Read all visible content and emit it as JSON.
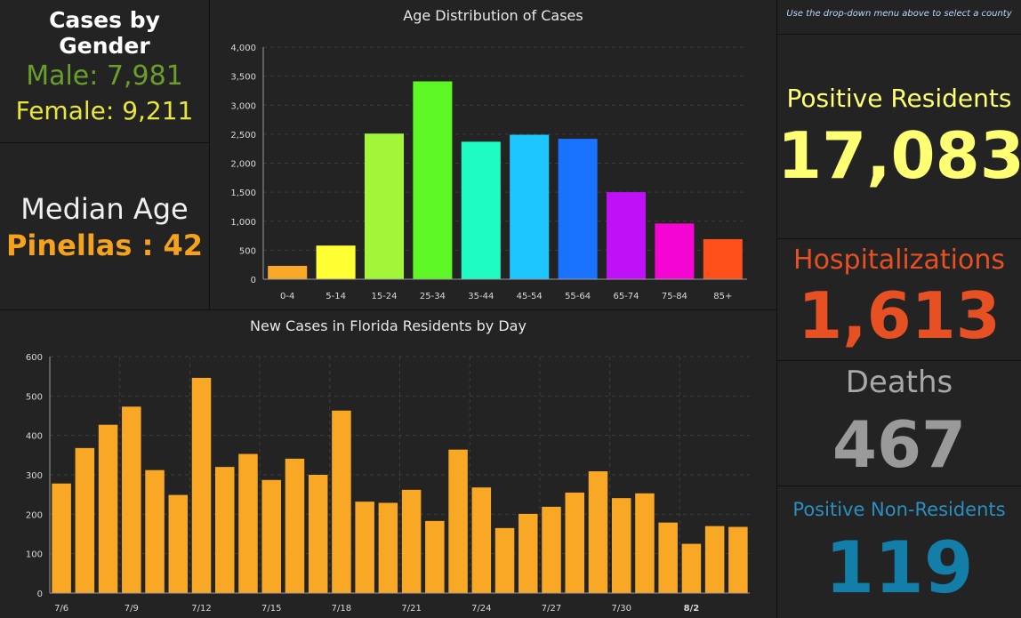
{
  "gender": {
    "title": "Cases by Gender",
    "male": "Male: 7,981",
    "female": "Female: 9,211"
  },
  "median": {
    "title": "Median Age",
    "value": "Pinellas : 42"
  },
  "note": "Use the drop-down menu above to select a county",
  "stats": {
    "positive_title": "Positive Residents",
    "positive_value": "17,083",
    "hosp_title": "Hospitalizations",
    "hosp_value": "1,613",
    "deaths_title": "Deaths",
    "deaths_value": "467",
    "nonres_title": "Positive Non-Residents",
    "nonres_value": "119"
  },
  "colors": {
    "background": "#111111",
    "panel": "#232323",
    "male": "#6a9e2a",
    "female": "#e8e63a",
    "median": "#f5a21c",
    "positive": "#ffff73",
    "hospitalizations": "#e65022",
    "deaths": "#9a9a9a",
    "nonresidents": "#137fa8",
    "daily_bar": "#f9a825"
  },
  "chart_data": [
    {
      "type": "bar",
      "title": "Age Distribution of Cases",
      "categories": [
        "0-4",
        "5-14",
        "15-24",
        "25-34",
        "35-44",
        "45-54",
        "55-64",
        "65-74",
        "75-84",
        "85+"
      ],
      "values": [
        230,
        580,
        2510,
        3410,
        2370,
        2490,
        2420,
        1500,
        960,
        690
      ],
      "colors": [
        "#f9a825",
        "#ffff33",
        "#a3f53a",
        "#5cf724",
        "#1ffcc3",
        "#1dc6ff",
        "#1a73ff",
        "#c010f7",
        "#f505d1",
        "#ff4f1a"
      ],
      "yticks": [
        "0",
        "500",
        "1,000",
        "1,500",
        "2,000",
        "2,500",
        "3,000",
        "3,500",
        "4,000"
      ],
      "ylim": [
        0,
        4000
      ],
      "grid": true
    },
    {
      "type": "bar",
      "title": "New Cases in Florida Residents by Day",
      "categories": [
        "7/6",
        "7/7",
        "7/8",
        "7/9",
        "7/10",
        "7/11",
        "7/12",
        "7/13",
        "7/14",
        "7/15",
        "7/16",
        "7/17",
        "7/18",
        "7/19",
        "7/20",
        "7/21",
        "7/22",
        "7/23",
        "7/24",
        "7/25",
        "7/26",
        "7/27",
        "7/28",
        "7/29",
        "7/30",
        "7/31",
        "8/1",
        "8/2",
        "8/3",
        "8/4"
      ],
      "values": [
        278,
        368,
        427,
        473,
        312,
        249,
        546,
        320,
        353,
        287,
        341,
        300,
        463,
        232,
        229,
        262,
        183,
        364,
        268,
        165,
        201,
        219,
        255,
        309,
        241,
        253,
        179,
        125,
        170,
        168
      ],
      "xticks": [
        "7/6",
        "7/9",
        "7/12",
        "7/15",
        "7/18",
        "7/21",
        "7/24",
        "7/27",
        "7/30",
        "8/2"
      ],
      "yticks": [
        "0",
        "100",
        "200",
        "300",
        "400",
        "500",
        "600"
      ],
      "ylim": [
        0,
        600
      ],
      "grid": true
    }
  ]
}
